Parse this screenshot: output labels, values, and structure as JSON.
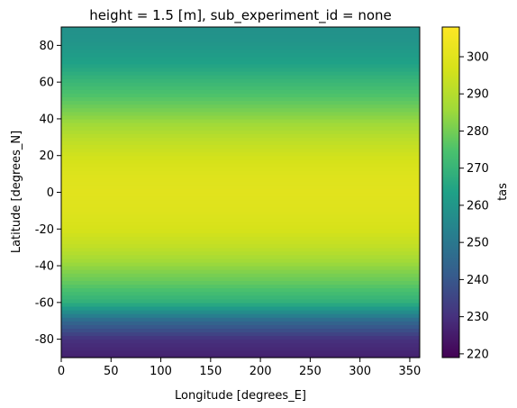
{
  "chart_data": {
    "type": "heatmap",
    "title": "height = 1.5 [m], sub_experiment_id = none",
    "xlabel": "Longitude [degrees_E]",
    "ylabel": "Latitude [degrees_N]",
    "xlim": [
      0,
      360
    ],
    "ylim": [
      -90,
      90
    ],
    "x_ticks": [
      0,
      50,
      100,
      150,
      200,
      250,
      300,
      350
    ],
    "y_ticks": [
      -80,
      -60,
      -40,
      -20,
      0,
      20,
      40,
      60,
      80
    ],
    "colorbar": {
      "label": "tas",
      "range": [
        219,
        308
      ],
      "ticks": [
        220,
        230,
        240,
        250,
        260,
        270,
        280,
        290,
        300
      ],
      "colormap": "viridis"
    },
    "zonal_mean_profile": {
      "lat": [
        -90,
        -80,
        -70,
        -60,
        -50,
        -40,
        -30,
        -20,
        -10,
        0,
        10,
        20,
        30,
        40,
        50,
        60,
        70,
        80,
        90
      ],
      "tas": [
        226,
        230,
        245,
        268,
        277,
        284,
        292,
        297,
        299,
        300,
        299,
        296,
        291,
        284,
        277,
        271,
        264,
        260,
        258
      ]
    }
  }
}
